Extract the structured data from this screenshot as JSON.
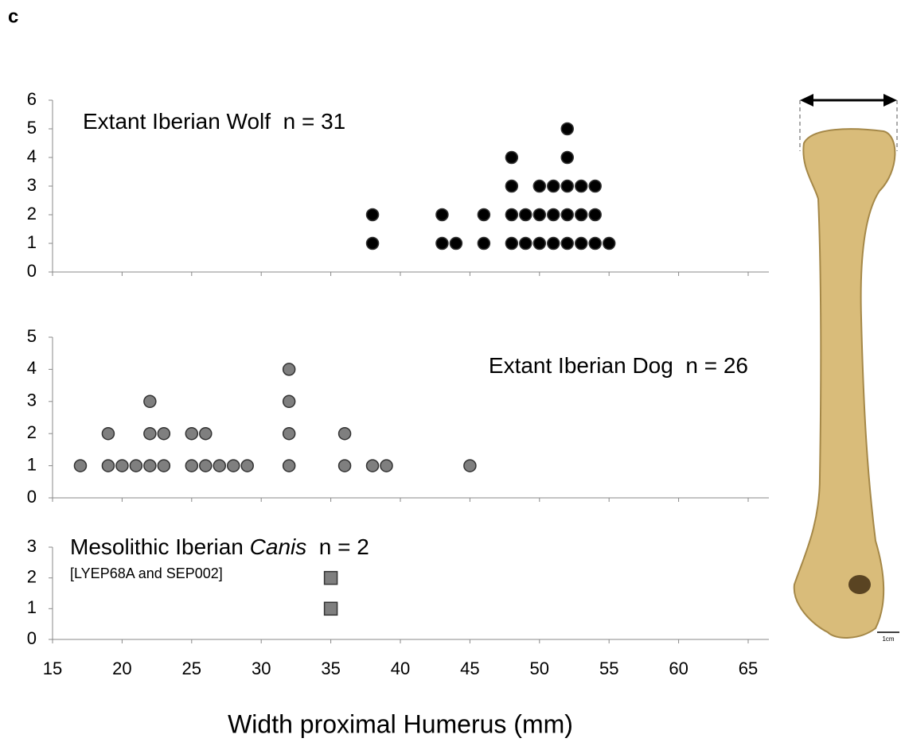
{
  "panel_label": "c",
  "scale_label": "1cm",
  "chart_data": [
    {
      "type": "scatter",
      "title": [
        "Extant Iberian Wolf  n = 31"
      ],
      "title_anchor": "left",
      "marker": "circle",
      "xlim": [
        15,
        65
      ],
      "xticks": [
        15,
        20,
        25,
        30,
        35,
        40,
        45,
        50,
        55,
        60,
        65
      ],
      "ylim": [
        0,
        6
      ],
      "yticks": [
        0,
        1,
        2,
        3,
        4,
        5,
        6
      ],
      "series": [
        {
          "color": "#000000",
          "x": [
            38,
            38,
            43,
            43,
            44,
            46,
            46,
            48,
            48,
            48,
            48,
            49,
            49,
            50,
            50,
            50,
            51,
            51,
            51,
            52,
            52,
            52,
            52,
            52,
            53,
            53,
            53,
            54,
            54,
            54,
            55
          ],
          "y": [
            1,
            2,
            1,
            2,
            1,
            1,
            2,
            1,
            2,
            3,
            4,
            1,
            2,
            1,
            2,
            3,
            1,
            2,
            3,
            1,
            2,
            3,
            4,
            5,
            1,
            2,
            3,
            1,
            2,
            3,
            1
          ]
        }
      ]
    },
    {
      "type": "scatter",
      "title": [
        "Extant Iberian Dog  n = 26"
      ],
      "title_anchor": "right",
      "marker": "circle",
      "xlim": [
        15,
        65
      ],
      "xticks": [
        15,
        20,
        25,
        30,
        35,
        40,
        45,
        50,
        55,
        60,
        65
      ],
      "ylim": [
        0,
        5
      ],
      "yticks": [
        0,
        1,
        2,
        3,
        4,
        5
      ],
      "series": [
        {
          "color": "#7f7f7f",
          "x": [
            17,
            19,
            19,
            20,
            21,
            22,
            22,
            22,
            23,
            23,
            25,
            25,
            26,
            26,
            27,
            28,
            29,
            32,
            32,
            32,
            32,
            36,
            36,
            38,
            39,
            45
          ],
          "y": [
            1,
            1,
            2,
            1,
            1,
            1,
            2,
            3,
            1,
            2,
            1,
            2,
            1,
            2,
            1,
            1,
            1,
            1,
            2,
            3,
            4,
            1,
            2,
            1,
            1,
            1
          ]
        }
      ]
    },
    {
      "type": "scatter",
      "title": [
        "Mesolithic Iberian ",
        "Canis",
        "  n = 2"
      ],
      "title_anchor": "left",
      "subtitle": "[LYEP68A and SEP002]",
      "marker": "square",
      "xlim": [
        15,
        65
      ],
      "xticks": [
        15,
        20,
        25,
        30,
        35,
        40,
        45,
        50,
        55,
        60,
        65
      ],
      "ylim": [
        0,
        3
      ],
      "yticks": [
        0,
        1,
        2,
        3
      ],
      "x_label": "Width proximal Humerus (mm)",
      "series": [
        {
          "color": "#7f7f7f",
          "x": [
            35,
            35
          ],
          "y": [
            1,
            2
          ]
        }
      ]
    }
  ]
}
